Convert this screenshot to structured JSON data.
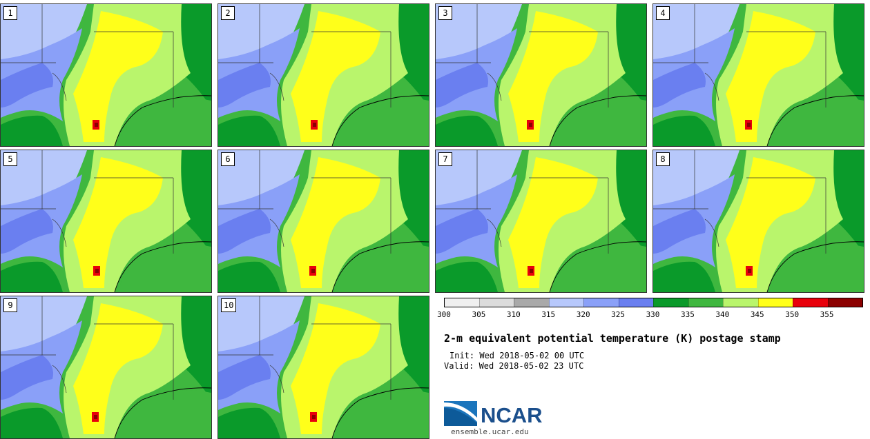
{
  "panels": [
    {
      "label": "1"
    },
    {
      "label": "2"
    },
    {
      "label": "3"
    },
    {
      "label": "4"
    },
    {
      "label": "5"
    },
    {
      "label": "6"
    },
    {
      "label": "7"
    },
    {
      "label": "8"
    },
    {
      "label": "9"
    },
    {
      "label": "10"
    }
  ],
  "colorbar": {
    "colors": [
      "#f0f0f0",
      "#dcdcdc",
      "#a9a9a9",
      "#b7c8fb",
      "#8aa0f8",
      "#6a7ff0",
      "#0a9a2a",
      "#3fb73f",
      "#b9f56c",
      "#ffff1a",
      "#e8000b",
      "#8b0000"
    ],
    "ticks": [
      "300",
      "305",
      "310",
      "315",
      "320",
      "325",
      "330",
      "335",
      "340",
      "345",
      "350",
      "355"
    ]
  },
  "title": "2-m equivalent potential temperature (K) postage stamp",
  "init": "Init: Wed 2018-05-02 00 UTC",
  "valid": "Valid: Wed 2018-05-02 23 UTC",
  "logo": {
    "text": "NCAR",
    "site": "ensemble.ucar.edu"
  }
}
